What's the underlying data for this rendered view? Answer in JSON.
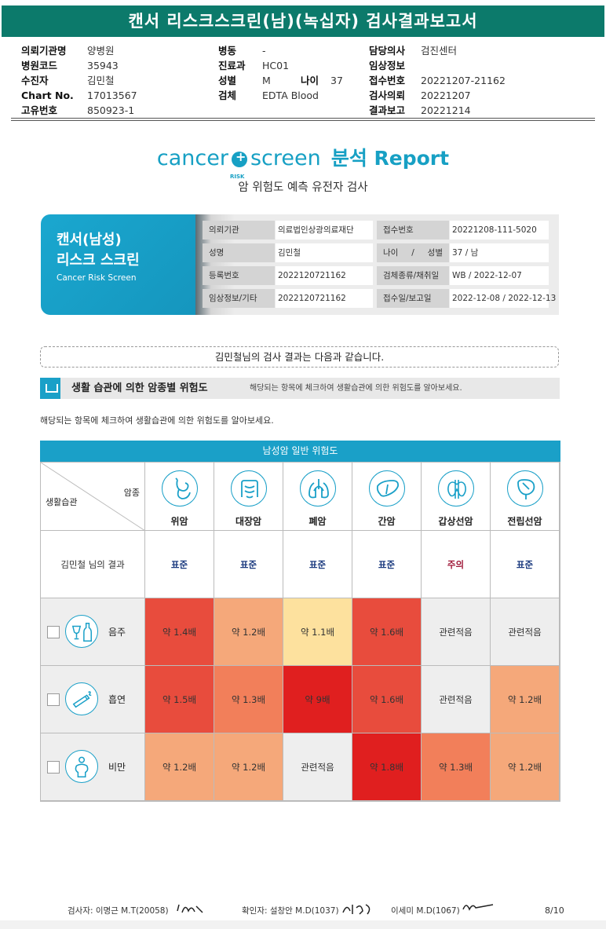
{
  "report_title": "캔서 리스크스크린(남)(녹십자) 검사결과보고서",
  "header": {
    "col1": [
      {
        "label": "의뢰기관명",
        "value": "양병원"
      },
      {
        "label": "병원코드",
        "value": "35943"
      },
      {
        "label": "수진자",
        "value": "김민철"
      },
      {
        "label": "Chart No.",
        "value": "17013567"
      },
      {
        "label": "고유번호",
        "value": "850923-1"
      }
    ],
    "col2": [
      {
        "label": "병동",
        "value": "-"
      },
      {
        "label": "진료과",
        "value": "HC01"
      },
      {
        "label": "성별",
        "value": "M"
      },
      {
        "label": "검체",
        "value": "EDTA Blood"
      }
    ],
    "age_label": "나이",
    "age_value": "37",
    "col3": [
      {
        "label": "담당의사",
        "value": "검진센터"
      },
      {
        "label": "임상정보",
        "value": ""
      },
      {
        "label": "접수번호",
        "value": "20221207-21162"
      },
      {
        "label": "검사의뢰",
        "value": "20221207"
      },
      {
        "label": "결과보고",
        "value": "20221214"
      }
    ]
  },
  "logo": {
    "cancer": "cancer",
    "risk": "RISK",
    "screen": "screen",
    "report": "분석 Report"
  },
  "subtitle": "암 위험도 예측 유전자 검사",
  "card": {
    "title_line1": "캔서(남성)",
    "title_line2": "리스크 스크린",
    "title_en": "Cancer Risk Screen",
    "info": [
      {
        "label": "의뢰기관",
        "value": "의료법인상광의료재단"
      },
      {
        "label": "접수번호",
        "value": "20221208-111-5020"
      },
      {
        "label": "성명",
        "value": "김민철"
      },
      {
        "label": "나이 / 성별",
        "value": "37 / 남"
      },
      {
        "label": "등록번호",
        "value": "2022120721162"
      },
      {
        "label": "검체종류/채취일",
        "value": "WB / 2022-12-07"
      },
      {
        "label": "임상정보/기타",
        "value": "2022120721162"
      },
      {
        "label": "접수일/보고일",
        "value": "2022-12-08 / 2022-12-13"
      }
    ]
  },
  "result_sentence": "김민철님의 검사 결과는 다음과 같습니다.",
  "section": {
    "title": "생활 습관에 의한 암종별 위험도",
    "desc": "해당되는 항목에 체크하여 생활습관에 의한 위험도를 알아보세요."
  },
  "note": "해당되는 항목에 체크하여 생활습관에 의한 위험도를 알아보세요.",
  "table": {
    "title": "남성암 일반 위험도",
    "corner_top": "암종",
    "corner_bottom": "생활습관",
    "result_row_label": "김민철 님의 결과",
    "cancers": [
      {
        "name": "위암",
        "icon": "stomach-icon",
        "result": "표준",
        "status": "standard"
      },
      {
        "name": "대장암",
        "icon": "colon-icon",
        "result": "표준",
        "status": "standard"
      },
      {
        "name": "폐암",
        "icon": "lung-icon",
        "result": "표준",
        "status": "standard"
      },
      {
        "name": "간암",
        "icon": "liver-icon",
        "result": "표준",
        "status": "standard"
      },
      {
        "name": "갑상선암",
        "icon": "thyroid-icon",
        "result": "주의",
        "status": "caution"
      },
      {
        "name": "전립선암",
        "icon": "prostate-icon",
        "result": "표준",
        "status": "standard"
      }
    ],
    "habits": [
      {
        "name": "음주",
        "icon": "alcohol-icon",
        "cells": [
          {
            "text": "약 1.4배",
            "color": "#e84c3d"
          },
          {
            "text": "약 1.2배",
            "color": "#f5a87a"
          },
          {
            "text": "약 1.1배",
            "color": "#fde19e"
          },
          {
            "text": "약 1.6배",
            "color": "#e84c3d"
          },
          {
            "text": "관련적음",
            "color": "#eeeeee"
          },
          {
            "text": "관련적음",
            "color": "#eeeeee"
          }
        ]
      },
      {
        "name": "흡연",
        "icon": "smoking-icon",
        "cells": [
          {
            "text": "약 1.5배",
            "color": "#e84c3d"
          },
          {
            "text": "약 1.3배",
            "color": "#f27f5a"
          },
          {
            "text": "약 9배",
            "color": "#e01f1f"
          },
          {
            "text": "약 1.6배",
            "color": "#e84c3d"
          },
          {
            "text": "관련적음",
            "color": "#eeeeee"
          },
          {
            "text": "약 1.2배",
            "color": "#f5a87a"
          }
        ]
      },
      {
        "name": "비만",
        "icon": "obesity-icon",
        "cells": [
          {
            "text": "약 1.2배",
            "color": "#f5a87a"
          },
          {
            "text": "약 1.2배",
            "color": "#f5a87a"
          },
          {
            "text": "관련적음",
            "color": "#eeeeee"
          },
          {
            "text": "약 1.8배",
            "color": "#e01f1f"
          },
          {
            "text": "약 1.3배",
            "color": "#f27f5a"
          },
          {
            "text": "약 1.2배",
            "color": "#f5a87a"
          }
        ]
      }
    ]
  },
  "footer": {
    "examiner": "검사자:  이명근 M.T(20058)",
    "confirmer": "확인자:  설창안 M.D(1037)",
    "doctor2": "이세미 M.D(1067)",
    "page": "8/10"
  },
  "colors": {
    "title_bar": "#0c7a6b",
    "accent": "#1aa0c8",
    "standard_text": "#1d3c80",
    "caution_text": "#a01a3a"
  }
}
